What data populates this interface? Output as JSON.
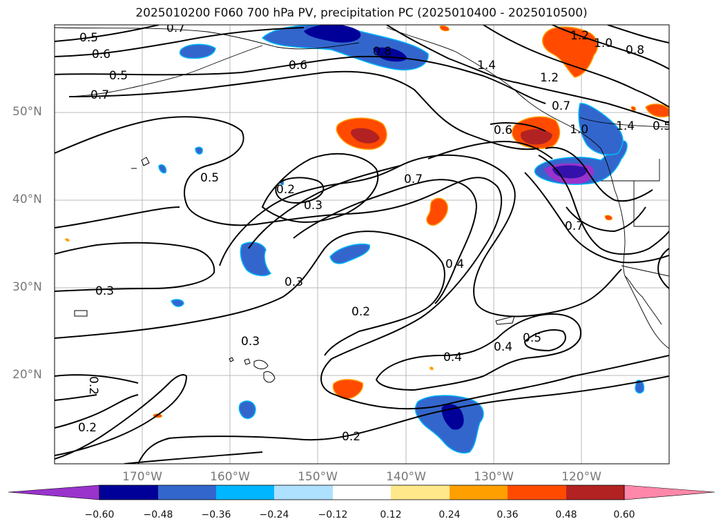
{
  "title": "2025010200 F060 700 hPa PV, precipitation PC (2025010400 - 2025010500)",
  "lat_ticks": [
    "50°N",
    "40°N",
    "30°N",
    "20°N"
  ],
  "lon_ticks": [
    "170°W",
    "160°W",
    "150°W",
    "140°W",
    "130°W",
    "120°W"
  ],
  "colorbar": {
    "colors": [
      "#9933cc",
      "#000099",
      "#3366cc",
      "#00b7ff",
      "#aee0ff",
      "#ffffff",
      "#ffe88a",
      "#ffa000",
      "#ff4a00",
      "#b22222",
      "#ff88aa"
    ],
    "tick_labels": [
      "−0.60",
      "−0.48",
      "−0.36",
      "−0.24",
      "−0.12",
      "0.12",
      "0.24",
      "0.36",
      "0.48",
      "0.60"
    ]
  },
  "contour_labels": [
    "0.5",
    "0.7",
    "0.6",
    "0.6",
    "0.5",
    "0.8",
    "1.4",
    "1.2",
    "1.0",
    "0.8",
    "1.2",
    "0.7",
    "0.7",
    "0.6",
    "1.0",
    "1.4",
    "0.5",
    "0.5",
    "0.2",
    "0.3",
    "0.7",
    "0.7",
    "0.3",
    "0.3",
    "0.4",
    "0.2",
    "0.3",
    "0.4",
    "0.5",
    "0.4",
    "0.2",
    "0.2",
    "0.2"
  ]
}
